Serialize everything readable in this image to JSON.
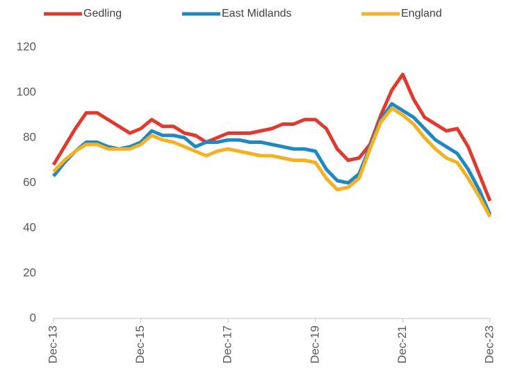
{
  "chart_data": {
    "type": "line",
    "categories": [
      "Dec-13",
      null,
      null,
      null,
      null,
      null,
      null,
      null,
      "Dec-15",
      null,
      null,
      null,
      null,
      null,
      null,
      null,
      "Dec-17",
      null,
      null,
      null,
      null,
      null,
      null,
      null,
      "Dec-19",
      null,
      null,
      null,
      null,
      null,
      null,
      null,
      "Dec-21",
      null,
      null,
      null,
      null,
      null,
      null,
      null,
      "Dec-23"
    ],
    "series": [
      {
        "name": "Gedling",
        "color": "#e03a2e",
        "values": [
          68,
          76,
          84,
          91,
          91,
          88,
          85,
          82,
          84,
          88,
          85,
          85,
          82,
          81,
          78,
          80,
          82,
          82,
          82,
          83,
          84,
          86,
          86,
          88,
          88,
          84,
          75,
          70,
          71,
          77,
          90,
          101,
          108,
          97,
          89,
          86,
          83,
          84,
          76,
          64,
          52
        ]
      },
      {
        "name": "East Midlands",
        "color": "#1f88c4",
        "values": [
          63,
          69,
          74,
          78,
          78,
          76,
          75,
          76,
          78,
          83,
          81,
          81,
          80,
          76,
          78,
          78,
          79,
          79,
          78,
          78,
          77,
          76,
          75,
          75,
          74,
          66,
          61,
          60,
          64,
          76,
          88,
          95,
          92,
          89,
          84,
          79,
          76,
          73,
          66,
          57,
          46
        ]
      },
      {
        "name": "England",
        "color": "#f5b120",
        "values": [
          65,
          70,
          74,
          77,
          77,
          75,
          75,
          75,
          77,
          81,
          79,
          78,
          76,
          74,
          72,
          74,
          75,
          74,
          73,
          72,
          72,
          71,
          70,
          70,
          69,
          62,
          57,
          58,
          62,
          75,
          87,
          93,
          90,
          86,
          80,
          75,
          71,
          69,
          62,
          54,
          45
        ]
      }
    ],
    "ylim": [
      0,
      120
    ],
    "yticks": [
      0,
      20,
      40,
      60,
      80,
      100,
      120
    ],
    "legend": "top"
  }
}
